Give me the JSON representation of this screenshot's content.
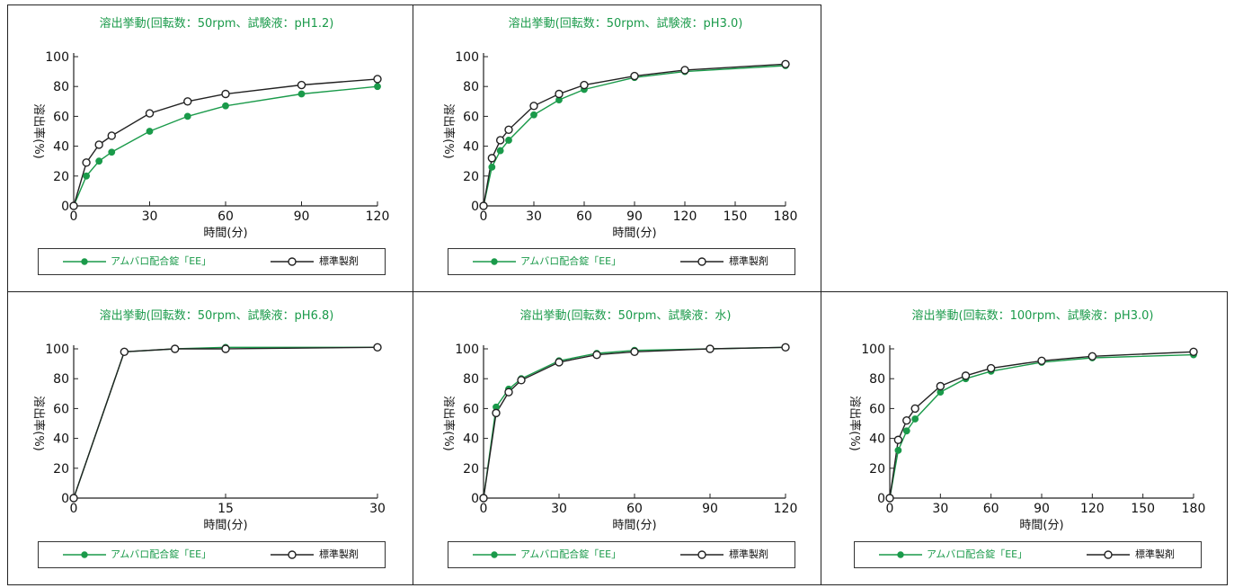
{
  "legend": {
    "series_a": "アムバロ配合錠「EE」",
    "series_b": "標準製剤"
  },
  "colors": {
    "series_a": "#1a9a4a",
    "series_b": "#222222",
    "title": "#1a9a4a"
  },
  "chart_data": [
    {
      "type": "line",
      "title": "溶出挙動(回転数：50rpm、試験液：pH1.2)",
      "xlabel": "時間(分)",
      "ylabel": "溶出率(%)",
      "xlim": [
        0,
        120
      ],
      "ylim": [
        0,
        100
      ],
      "xticks": [
        0,
        30,
        60,
        90,
        120
      ],
      "yticks": [
        0,
        20,
        40,
        60,
        80,
        100
      ],
      "series": [
        {
          "name": "アムバロ配合錠「EE」",
          "x": [
            0,
            5,
            10,
            15,
            30,
            45,
            60,
            90,
            120
          ],
          "y": [
            0,
            20,
            30,
            36,
            50,
            60,
            67,
            75,
            80
          ]
        },
        {
          "name": "標準製剤",
          "x": [
            0,
            5,
            10,
            15,
            30,
            45,
            60,
            90,
            120
          ],
          "y": [
            0,
            29,
            41,
            47,
            62,
            70,
            75,
            81,
            85
          ]
        }
      ]
    },
    {
      "type": "line",
      "title": "溶出挙動(回転数：50rpm、試験液：pH3.0)",
      "xlabel": "時間(分)",
      "ylabel": "溶出率(%)",
      "xlim": [
        0,
        180
      ],
      "ylim": [
        0,
        100
      ],
      "xticks": [
        0,
        30,
        60,
        90,
        120,
        150,
        180
      ],
      "yticks": [
        0,
        20,
        40,
        60,
        80,
        100
      ],
      "series": [
        {
          "name": "アムバロ配合錠「EE」",
          "x": [
            0,
            5,
            10,
            15,
            30,
            45,
            60,
            90,
            120,
            180
          ],
          "y": [
            0,
            26,
            37,
            44,
            61,
            71,
            78,
            86,
            90,
            94
          ]
        },
        {
          "name": "標準製剤",
          "x": [
            0,
            5,
            10,
            15,
            30,
            45,
            60,
            90,
            120,
            180
          ],
          "y": [
            0,
            32,
            44,
            51,
            67,
            75,
            81,
            87,
            91,
            95
          ]
        }
      ]
    },
    {
      "type": "line",
      "title": "溶出挙動(回転数：50rpm、試験液：pH6.8)",
      "xlabel": "時間(分)",
      "ylabel": "溶出率(%)",
      "xlim": [
        0,
        30
      ],
      "ylim": [
        0,
        100
      ],
      "xticks": [
        0,
        15,
        30
      ],
      "yticks": [
        0,
        20,
        40,
        60,
        80,
        100
      ],
      "series": [
        {
          "name": "アムバロ配合錠「EE」",
          "x": [
            0,
            5,
            10,
            15,
            30
          ],
          "y": [
            0,
            98,
            100,
            101,
            101
          ]
        },
        {
          "name": "標準製剤",
          "x": [
            0,
            5,
            10,
            15,
            30
          ],
          "y": [
            0,
            98,
            100,
            100,
            101
          ]
        }
      ]
    },
    {
      "type": "line",
      "title": "溶出挙動(回転数：50rpm、試験液：水)",
      "xlabel": "時間(分)",
      "ylabel": "溶出率(%)",
      "xlim": [
        0,
        120
      ],
      "ylim": [
        0,
        100
      ],
      "xticks": [
        0,
        30,
        60,
        90,
        120
      ],
      "yticks": [
        0,
        20,
        40,
        60,
        80,
        100
      ],
      "series": [
        {
          "name": "アムバロ配合錠「EE」",
          "x": [
            0,
            5,
            10,
            15,
            30,
            45,
            60,
            90,
            120
          ],
          "y": [
            0,
            61,
            73,
            80,
            92,
            97,
            99,
            100,
            101
          ]
        },
        {
          "name": "標準製剤",
          "x": [
            0,
            5,
            10,
            15,
            30,
            45,
            60,
            90,
            120
          ],
          "y": [
            0,
            57,
            71,
            79,
            91,
            96,
            98,
            100,
            101
          ]
        }
      ]
    },
    {
      "type": "line",
      "title": "溶出挙動(回転数：100rpm、試験液：pH3.0)",
      "xlabel": "時間(分)",
      "ylabel": "溶出率(%)",
      "xlim": [
        0,
        180
      ],
      "ylim": [
        0,
        100
      ],
      "xticks": [
        0,
        30,
        60,
        90,
        120,
        150,
        180
      ],
      "yticks": [
        0,
        20,
        40,
        60,
        80,
        100
      ],
      "series": [
        {
          "name": "アムバロ配合錠「EE」",
          "x": [
            0,
            5,
            10,
            15,
            30,
            45,
            60,
            90,
            120,
            180
          ],
          "y": [
            0,
            32,
            45,
            53,
            71,
            80,
            85,
            91,
            94,
            96
          ]
        },
        {
          "name": "標準製剤",
          "x": [
            0,
            5,
            10,
            15,
            30,
            45,
            60,
            90,
            120,
            180
          ],
          "y": [
            0,
            39,
            52,
            60,
            75,
            82,
            87,
            92,
            95,
            98
          ]
        }
      ]
    }
  ]
}
